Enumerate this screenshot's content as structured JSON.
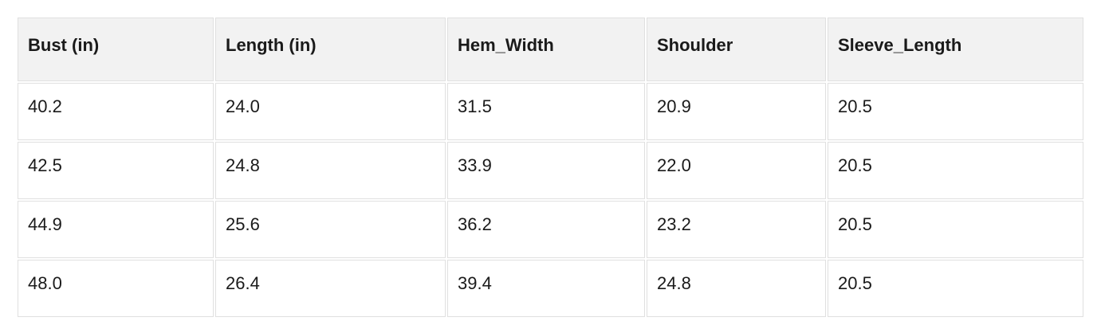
{
  "chart_data": {
    "type": "table",
    "title": "",
    "columns": [
      "Bust (in)",
      "Length (in)",
      "Hem_Width",
      "Shoulder",
      "Sleeve_Length"
    ],
    "rows": [
      [
        "40.2",
        "24.0",
        "31.5",
        "20.9",
        "20.5"
      ],
      [
        "42.5",
        "24.8",
        "33.9",
        "22.0",
        "20.5"
      ],
      [
        "44.9",
        "25.6",
        "36.2",
        "23.2",
        "20.5"
      ],
      [
        "48.0",
        "26.4",
        "39.4",
        "24.8",
        "20.5"
      ]
    ]
  },
  "colors": {
    "header_bg": "#f2f2f2",
    "cell_bg": "#ffffff",
    "border": "#e0e0e0",
    "text": "#1a1a1a",
    "page_bg": "#ffffff"
  }
}
